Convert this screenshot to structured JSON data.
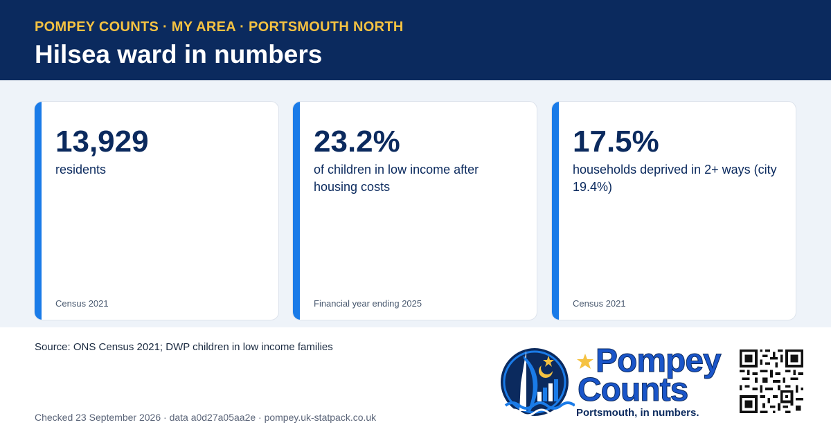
{
  "header": {
    "kicker": "POMPEY COUNTS · MY AREA · PORTSMOUTH NORTH",
    "title": "Hilsea ward in numbers"
  },
  "cards": [
    {
      "value": "13,929",
      "description": "residents",
      "note": "Census 2021"
    },
    {
      "value": "23.2%",
      "description": "of children in low income after housing costs",
      "note": "Financial year ending 2025"
    },
    {
      "value": "17.5%",
      "description": "households deprived in 2+ ways (city 19.4%)",
      "note": "Census 2021"
    }
  ],
  "source": "Source: ONS Census 2021; DWP children in low income families",
  "footer": "Checked 23 September 2026 · data a0d27a05aa2e · pompey.uk-statpack.co.uk",
  "logo": {
    "line1": "Pompey",
    "line2": "Counts",
    "tagline": "Portsmouth, in numbers."
  },
  "icons": {
    "logo_emblem": "spinnaker-tower-star-crescent-icon",
    "qr": "qr-code-icon"
  },
  "colors": {
    "header_bg": "#0b2a5e",
    "kicker": "#f5c242",
    "accent": "#1a7be8",
    "band_bg": "#eef3f9"
  }
}
